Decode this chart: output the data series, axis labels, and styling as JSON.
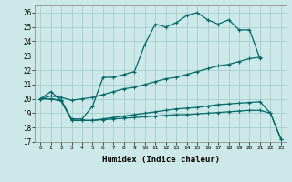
{
  "xlabel": "Humidex (Indice chaleur)",
  "bg_color": "#cce8e8",
  "grid_color": "#a0c8c8",
  "line_color": "#006868",
  "xlim": [
    -0.5,
    23.5
  ],
  "ylim": [
    17,
    26.5
  ],
  "yticks": [
    17,
    18,
    19,
    20,
    21,
    22,
    23,
    24,
    25,
    26
  ],
  "xticks": [
    0,
    1,
    2,
    3,
    4,
    5,
    6,
    7,
    8,
    9,
    10,
    11,
    12,
    13,
    14,
    15,
    16,
    17,
    18,
    19,
    20,
    21,
    22,
    23
  ],
  "curve1_x": [
    0,
    1,
    2,
    3,
    4,
    5,
    6,
    7,
    8,
    9,
    10,
    11,
    12,
    13,
    14,
    15,
    16,
    17,
    18,
    19,
    20,
    21
  ],
  "curve1_y": [
    20.0,
    20.5,
    19.9,
    18.6,
    18.6,
    19.5,
    21.5,
    21.5,
    21.7,
    21.9,
    23.8,
    25.2,
    25.0,
    25.3,
    25.8,
    26.0,
    25.5,
    25.2,
    25.5,
    24.8,
    24.8,
    22.8
  ],
  "curve2_x": [
    0,
    1,
    2,
    3,
    4,
    5,
    6,
    7,
    8,
    9,
    10,
    11,
    12,
    13,
    14,
    15,
    16,
    17,
    18,
    19,
    20,
    21
  ],
  "curve2_y": [
    20.0,
    20.2,
    20.1,
    19.9,
    20.0,
    20.1,
    20.3,
    20.5,
    20.7,
    20.8,
    21.0,
    21.2,
    21.4,
    21.5,
    21.7,
    21.9,
    22.1,
    22.3,
    22.4,
    22.6,
    22.8,
    22.9
  ],
  "curve3_x": [
    0,
    1,
    2,
    3,
    4,
    5,
    6,
    7,
    8,
    9,
    10,
    11,
    12,
    13,
    14,
    15,
    16,
    17,
    18,
    19,
    20,
    21,
    22,
    23
  ],
  "curve3_y": [
    20.0,
    20.0,
    19.9,
    18.5,
    18.5,
    18.5,
    18.6,
    18.7,
    18.8,
    18.9,
    19.0,
    19.1,
    19.2,
    19.3,
    19.35,
    19.4,
    19.5,
    19.6,
    19.65,
    19.7,
    19.75,
    19.8,
    19.0,
    17.2
  ],
  "curve4_x": [
    0,
    1,
    2,
    3,
    4,
    5,
    6,
    7,
    8,
    9,
    10,
    11,
    12,
    13,
    14,
    15,
    16,
    17,
    18,
    19,
    20,
    21,
    22,
    23
  ],
  "curve4_y": [
    20.0,
    20.0,
    19.85,
    18.5,
    18.5,
    18.5,
    18.55,
    18.6,
    18.65,
    18.7,
    18.75,
    18.8,
    18.85,
    18.9,
    18.9,
    18.95,
    19.0,
    19.05,
    19.1,
    19.15,
    19.2,
    19.2,
    19.0,
    17.2
  ]
}
